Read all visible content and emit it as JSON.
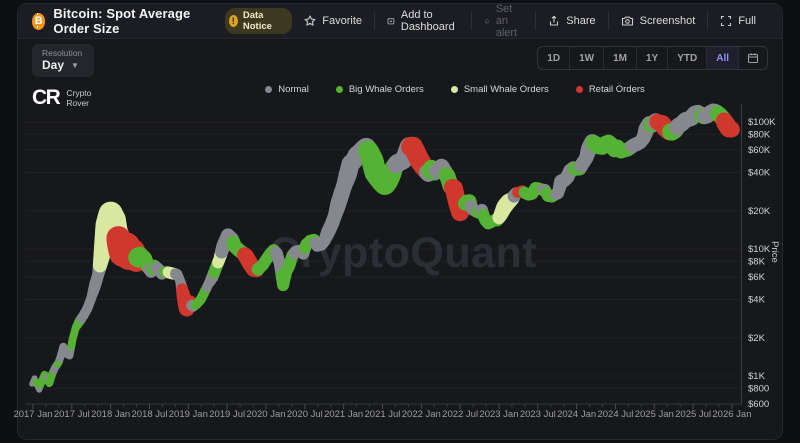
{
  "header": {
    "title": "Bitcoin: Spot Average Order Size",
    "badge": "Data Notice",
    "actions": [
      {
        "label": "Favorite",
        "icon": "star-icon",
        "enabled": true
      },
      {
        "label": "Add to Dashboard",
        "icon": "dashboard-add-icon",
        "enabled": true
      },
      {
        "label": "Set an alert",
        "icon": "bell-icon",
        "enabled": false
      },
      {
        "label": "Share",
        "icon": "share-icon",
        "enabled": true
      },
      {
        "label": "Screenshot",
        "icon": "camera-icon",
        "enabled": true
      },
      {
        "label": "Full",
        "icon": "expand-icon",
        "enabled": true
      }
    ]
  },
  "toolbar": {
    "resolution_label": "Resolution",
    "resolution_value": "Day",
    "ranges": [
      "1D",
      "1W",
      "1M",
      "1Y",
      "YTD",
      "All"
    ],
    "active_range": "All"
  },
  "logo": {
    "mark": "CR",
    "line1": "Crypto",
    "line2": "Rover"
  },
  "watermark": "CryptoQuant",
  "chart_data": {
    "type": "scatter",
    "title": "Bitcoin: Spot Average Order Size",
    "x_axis": {
      "labels": [
        "2017 Jan",
        "2017 Jul",
        "2018 Jan",
        "2018 Jul",
        "2019 Jan",
        "2019 Jul",
        "2020 Jan",
        "2020 Jul",
        "2021 Jan",
        "2021 Jul",
        "2022 Jan",
        "2022 Jul",
        "2023 Jan",
        "2023 Jul",
        "2024 Jan",
        "2024 Jul",
        "2025 Jan",
        "2025 Jul",
        "2026 Jan"
      ],
      "start_year": 2017.0,
      "step_years": 0.5
    },
    "y_axis": {
      "title": "Price",
      "scale": "log",
      "ticks": [
        {
          "v": 100000,
          "label": "$100K"
        },
        {
          "v": 80000,
          "label": "$80K"
        },
        {
          "v": 60000,
          "label": "$60K"
        },
        {
          "v": 40000,
          "label": "$40K"
        },
        {
          "v": 20000,
          "label": "$20K"
        },
        {
          "v": 10000,
          "label": "$10K"
        },
        {
          "v": 8000,
          "label": "$8K"
        },
        {
          "v": 6000,
          "label": "$6K"
        },
        {
          "v": 4000,
          "label": "$4K"
        },
        {
          "v": 2000,
          "label": "$2K"
        },
        {
          "v": 1000,
          "label": "$1K"
        },
        {
          "v": 800,
          "label": "$800"
        },
        {
          "v": 600,
          "label": "$600"
        }
      ]
    },
    "series": [
      {
        "name": "Normal",
        "key": "N",
        "color": "#87888f"
      },
      {
        "name": "Big Whale Orders",
        "key": "B",
        "color": "#55b234"
      },
      {
        "name": "Small Whale Orders",
        "key": "S",
        "color": "#d9e7a1"
      },
      {
        "name": "Retail Orders",
        "key": "R",
        "color": "#d1382d"
      }
    ],
    "points": [
      [
        2016.99,
        870,
        "N",
        3
      ],
      [
        2017.02,
        960,
        "N",
        3
      ],
      [
        2017.05,
        850,
        "B",
        3
      ],
      [
        2017.08,
        780,
        "N",
        3
      ],
      [
        2017.11,
        900,
        "B",
        4
      ],
      [
        2017.15,
        1020,
        "B",
        4
      ],
      [
        2017.18,
        950,
        "N",
        3
      ],
      [
        2017.21,
        880,
        "B",
        4
      ],
      [
        2017.25,
        1050,
        "B",
        4
      ],
      [
        2017.29,
        1180,
        "N",
        4
      ],
      [
        2017.33,
        1280,
        "B",
        4
      ],
      [
        2017.36,
        1450,
        "N",
        4
      ],
      [
        2017.39,
        1700,
        "N",
        4
      ],
      [
        2017.43,
        1500,
        "N",
        4
      ],
      [
        2017.47,
        1450,
        "N",
        4
      ],
      [
        2017.51,
        1950,
        "B",
        4
      ],
      [
        2017.55,
        2400,
        "B",
        4
      ],
      [
        2017.6,
        2700,
        "B",
        5
      ],
      [
        2017.65,
        3000,
        "N",
        5
      ],
      [
        2017.7,
        3400,
        "N",
        5
      ],
      [
        2017.75,
        4100,
        "N",
        5
      ],
      [
        2017.8,
        5200,
        "N",
        6
      ],
      [
        2017.84,
        6300,
        "N",
        6
      ],
      [
        2017.88,
        8500,
        "S",
        8
      ],
      [
        2017.92,
        11500,
        "S",
        10
      ],
      [
        2017.96,
        15500,
        "S",
        12
      ],
      [
        2018.0,
        19000,
        "S",
        12
      ],
      [
        2018.04,
        17000,
        "S",
        12
      ],
      [
        2018.08,
        13500,
        "S",
        11
      ],
      [
        2018.12,
        11000,
        "R",
        13
      ],
      [
        2018.16,
        9300,
        "R",
        14
      ],
      [
        2018.2,
        10500,
        "R",
        14
      ],
      [
        2018.24,
        8800,
        "R",
        14
      ],
      [
        2018.28,
        9500,
        "R",
        13
      ],
      [
        2018.33,
        8200,
        "R",
        12
      ],
      [
        2018.38,
        9000,
        "B",
        8
      ],
      [
        2018.43,
        8400,
        "B",
        8
      ],
      [
        2018.48,
        7300,
        "B",
        7
      ],
      [
        2018.52,
        6600,
        "N",
        6
      ],
      [
        2018.56,
        7400,
        "B",
        6
      ],
      [
        2018.61,
        7000,
        "N",
        6
      ],
      [
        2018.66,
        6400,
        "N",
        6
      ],
      [
        2018.71,
        6700,
        "B",
        5
      ],
      [
        2018.76,
        6500,
        "S",
        6
      ],
      [
        2018.81,
        6400,
        "S",
        6
      ],
      [
        2018.86,
        6350,
        "N",
        5
      ],
      [
        2018.9,
        5500,
        "N",
        5
      ],
      [
        2018.94,
        4200,
        "R",
        7
      ],
      [
        2018.98,
        3400,
        "R",
        8
      ],
      [
        2019.02,
        3800,
        "R",
        7
      ],
      [
        2019.06,
        3500,
        "N",
        5
      ],
      [
        2019.11,
        3700,
        "B",
        5
      ],
      [
        2019.16,
        4000,
        "B",
        5
      ],
      [
        2019.21,
        4600,
        "B",
        5
      ],
      [
        2019.26,
        5300,
        "N",
        5
      ],
      [
        2019.31,
        6000,
        "N",
        6
      ],
      [
        2019.36,
        7200,
        "B",
        6
      ],
      [
        2019.4,
        8300,
        "S",
        6
      ],
      [
        2019.45,
        10500,
        "N",
        7
      ],
      [
        2019.51,
        12800,
        "N",
        7
      ],
      [
        2019.56,
        12000,
        "N",
        7
      ],
      [
        2019.6,
        10500,
        "B",
        7
      ],
      [
        2019.65,
        9800,
        "B",
        7
      ],
      [
        2019.7,
        9300,
        "B",
        7
      ],
      [
        2019.74,
        8800,
        "R",
        8
      ],
      [
        2019.79,
        7800,
        "R",
        8
      ],
      [
        2019.84,
        7000,
        "R",
        8
      ],
      [
        2019.88,
        6800,
        "R",
        7
      ],
      [
        2019.92,
        7100,
        "B",
        6
      ],
      [
        2019.96,
        7500,
        "B",
        6
      ],
      [
        2020.0,
        8200,
        "B",
        6
      ],
      [
        2020.05,
        9100,
        "B",
        6
      ],
      [
        2020.1,
        9800,
        "B",
        6
      ],
      [
        2020.14,
        9200,
        "N",
        6
      ],
      [
        2020.18,
        7600,
        "N",
        6
      ],
      [
        2020.22,
        5200,
        "B",
        6
      ],
      [
        2020.26,
        6600,
        "B",
        6
      ],
      [
        2020.3,
        7400,
        "B",
        6
      ],
      [
        2020.34,
        8900,
        "B",
        6
      ],
      [
        2020.38,
        9500,
        "N",
        6
      ],
      [
        2020.43,
        9700,
        "N",
        6
      ],
      [
        2020.48,
        9200,
        "N",
        6
      ],
      [
        2020.52,
        10900,
        "B",
        6
      ],
      [
        2020.57,
        11600,
        "B",
        6
      ],
      [
        2020.62,
        11800,
        "B",
        6
      ],
      [
        2020.66,
        10600,
        "N",
        6
      ],
      [
        2020.71,
        10800,
        "N",
        6
      ],
      [
        2020.75,
        11500,
        "N",
        6
      ],
      [
        2020.8,
        13600,
        "N",
        7
      ],
      [
        2020.85,
        15800,
        "N",
        7
      ],
      [
        2020.89,
        18500,
        "N",
        7
      ],
      [
        2020.93,
        22500,
        "N",
        8
      ],
      [
        2020.97,
        27000,
        "N",
        8
      ],
      [
        2021.01,
        32000,
        "N",
        8
      ],
      [
        2021.05,
        38000,
        "N",
        9
      ],
      [
        2021.09,
        47000,
        "N",
        9
      ],
      [
        2021.13,
        49500,
        "N",
        9
      ],
      [
        2021.17,
        55000,
        "N",
        9
      ],
      [
        2021.21,
        57500,
        "N",
        9
      ],
      [
        2021.25,
        59500,
        "N",
        10
      ],
      [
        2021.29,
        62500,
        "N",
        10
      ],
      [
        2021.33,
        58000,
        "B",
        10
      ],
      [
        2021.37,
        50000,
        "B",
        11
      ],
      [
        2021.41,
        40000,
        "B",
        11
      ],
      [
        2021.45,
        37000,
        "B",
        11
      ],
      [
        2021.49,
        34500,
        "B",
        11
      ],
      [
        2021.53,
        32500,
        "B",
        11
      ],
      [
        2021.57,
        34000,
        "B",
        10
      ],
      [
        2021.61,
        38500,
        "B",
        10
      ],
      [
        2021.65,
        44000,
        "B",
        9
      ],
      [
        2021.69,
        47500,
        "N",
        9
      ],
      [
        2021.73,
        48500,
        "N",
        9
      ],
      [
        2021.77,
        50000,
        "N",
        9
      ],
      [
        2021.81,
        57000,
        "N",
        9
      ],
      [
        2021.85,
        63500,
        "N",
        10
      ],
      [
        2021.89,
        64000,
        "R",
        10
      ],
      [
        2021.93,
        57500,
        "R",
        10
      ],
      [
        2021.97,
        51000,
        "R",
        10
      ],
      [
        2022.01,
        46500,
        "R",
        10
      ],
      [
        2022.05,
        42500,
        "R",
        9
      ],
      [
        2022.09,
        39000,
        "N",
        8
      ],
      [
        2022.13,
        43500,
        "B",
        8
      ],
      [
        2022.17,
        40000,
        "B",
        8
      ],
      [
        2022.22,
        41500,
        "N",
        8
      ],
      [
        2022.26,
        44500,
        "N",
        8
      ],
      [
        2022.3,
        40500,
        "N",
        8
      ],
      [
        2022.34,
        37000,
        "B",
        8
      ],
      [
        2022.38,
        31000,
        "B",
        8
      ],
      [
        2022.42,
        30000,
        "R",
        9
      ],
      [
        2022.46,
        23500,
        "R",
        9
      ],
      [
        2022.5,
        19500,
        "R",
        9
      ],
      [
        2022.54,
        21500,
        "R",
        8
      ],
      [
        2022.58,
        23500,
        "B",
        7
      ],
      [
        2022.62,
        23800,
        "B",
        7
      ],
      [
        2022.66,
        20500,
        "N",
        6
      ],
      [
        2022.7,
        19800,
        "N",
        6
      ],
      [
        2022.74,
        19300,
        "B",
        6
      ],
      [
        2022.78,
        20300,
        "N",
        6
      ],
      [
        2022.82,
        17000,
        "B",
        6
      ],
      [
        2022.86,
        15900,
        "B",
        6
      ],
      [
        2022.9,
        16300,
        "B",
        6
      ],
      [
        2022.94,
        16900,
        "B",
        6
      ],
      [
        2022.98,
        16800,
        "B",
        6
      ],
      [
        2023.02,
        18500,
        "S",
        7
      ],
      [
        2023.07,
        21500,
        "S",
        8
      ],
      [
        2023.12,
        23500,
        "S",
        8
      ],
      [
        2023.17,
        24800,
        "S",
        7
      ],
      [
        2023.22,
        27500,
        "N",
        6
      ],
      [
        2023.26,
        28300,
        "R",
        5
      ],
      [
        2023.3,
        29000,
        "R",
        5
      ],
      [
        2023.34,
        27500,
        "B",
        6
      ],
      [
        2023.38,
        26800,
        "B",
        6
      ],
      [
        2023.43,
        27300,
        "B",
        6
      ],
      [
        2023.47,
        30200,
        "B",
        6
      ],
      [
        2023.51,
        30000,
        "B",
        6
      ],
      [
        2023.55,
        29400,
        "B",
        6
      ],
      [
        2023.59,
        29200,
        "N",
        6
      ],
      [
        2023.63,
        26200,
        "B",
        6
      ],
      [
        2023.68,
        25900,
        "B",
        6
      ],
      [
        2023.72,
        26700,
        "B",
        6
      ],
      [
        2023.76,
        27500,
        "N",
        6
      ],
      [
        2023.8,
        34000,
        "N",
        7
      ],
      [
        2023.84,
        34800,
        "N",
        7
      ],
      [
        2023.88,
        36800,
        "N",
        7
      ],
      [
        2023.92,
        41500,
        "N",
        7
      ],
      [
        2023.96,
        43200,
        "N",
        7
      ],
      [
        2024.0,
        42800,
        "B",
        7
      ],
      [
        2024.04,
        43100,
        "B",
        7
      ],
      [
        2024.08,
        47500,
        "N",
        7
      ],
      [
        2024.12,
        51500,
        "N",
        7
      ],
      [
        2024.16,
        61500,
        "N",
        8
      ],
      [
        2024.2,
        69500,
        "N",
        8
      ],
      [
        2024.24,
        67500,
        "B",
        8
      ],
      [
        2024.28,
        64500,
        "B",
        8
      ],
      [
        2024.33,
        63800,
        "B",
        8
      ],
      [
        2024.37,
        67200,
        "B",
        8
      ],
      [
        2024.41,
        68800,
        "B",
        8
      ],
      [
        2024.45,
        65500,
        "B",
        8
      ],
      [
        2024.49,
        61000,
        "B",
        8
      ],
      [
        2024.53,
        64000,
        "B",
        7
      ],
      [
        2024.57,
        58500,
        "B",
        7
      ],
      [
        2024.61,
        59600,
        "B",
        7
      ],
      [
        2024.66,
        60800,
        "B",
        7
      ],
      [
        2024.7,
        63200,
        "B",
        7
      ],
      [
        2024.74,
        65800,
        "N",
        7
      ],
      [
        2024.78,
        67200,
        "N",
        7
      ],
      [
        2024.82,
        69500,
        "N",
        7
      ],
      [
        2024.86,
        74500,
        "N",
        7
      ],
      [
        2024.9,
        88000,
        "N",
        8
      ],
      [
        2024.94,
        96500,
        "N",
        8
      ],
      [
        2024.98,
        95500,
        "B",
        8
      ],
      [
        2025.02,
        101500,
        "N",
        8
      ],
      [
        2025.06,
        99000,
        "R",
        8
      ],
      [
        2025.1,
        96500,
        "R",
        9
      ],
      [
        2025.14,
        90000,
        "R",
        9
      ],
      [
        2025.19,
        84500,
        "R",
        9
      ],
      [
        2025.23,
        82500,
        "B",
        8
      ],
      [
        2025.27,
        85500,
        "B",
        8
      ],
      [
        2025.31,
        93500,
        "N",
        8
      ],
      [
        2025.35,
        96500,
        "N",
        8
      ],
      [
        2025.4,
        103500,
        "N",
        8
      ],
      [
        2025.44,
        105500,
        "N",
        8
      ],
      [
        2025.48,
        107500,
        "N",
        8
      ],
      [
        2025.52,
        116000,
        "N",
        8
      ],
      [
        2025.56,
        118000,
        "N",
        8
      ],
      [
        2025.6,
        114000,
        "N",
        8
      ],
      [
        2025.64,
        111000,
        "B",
        8
      ],
      [
        2025.68,
        112500,
        "N",
        8
      ],
      [
        2025.72,
        117500,
        "N",
        8
      ],
      [
        2025.76,
        121000,
        "N",
        8
      ],
      [
        2025.8,
        119000,
        "N",
        8
      ],
      [
        2025.84,
        114000,
        "B",
        8
      ],
      [
        2025.88,
        107000,
        "B",
        8
      ],
      [
        2025.92,
        97000,
        "R",
        9
      ],
      [
        2025.96,
        89000,
        "R",
        9
      ],
      [
        2026.0,
        87500,
        "R",
        8
      ]
    ]
  }
}
